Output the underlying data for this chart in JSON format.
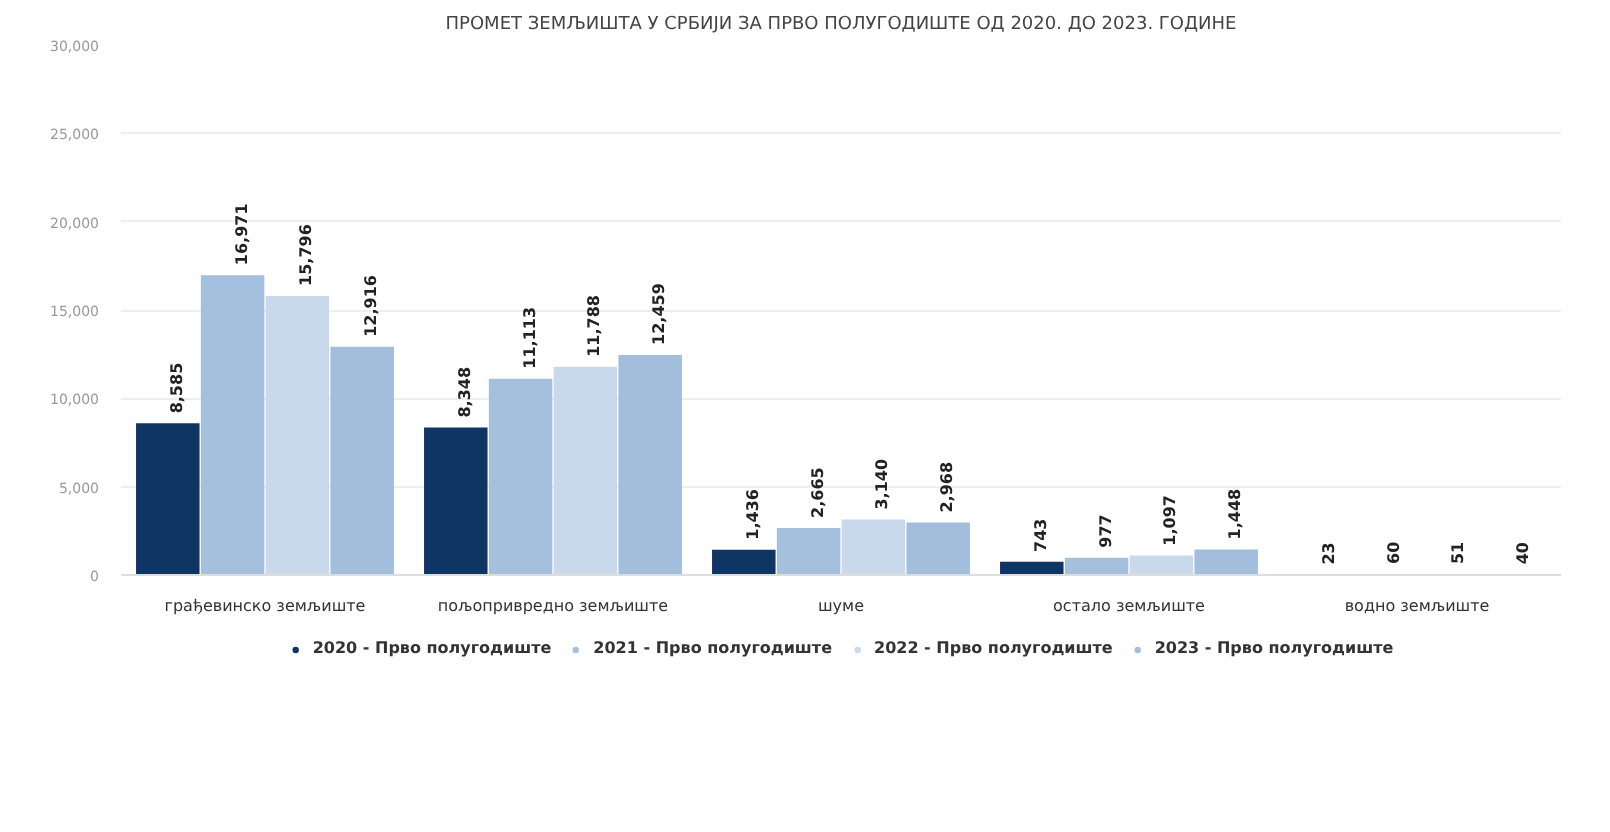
{
  "chart_data": {
    "type": "bar",
    "title": "ПРОМЕТ ЗЕМЉИШТА У СРБИЈИ ЗА ПРВО ПОЛУГОДИШТЕ ОД 2020. ДО 2023. ГОДИНЕ",
    "categories": [
      "грађевинско земљиште",
      "пољопривредно земљиште",
      "шуме",
      "остало земљиште",
      "водно земљиште"
    ],
    "series": [
      {
        "name": "2020 - Прво полугодиште",
        "color": "#0f3564",
        "values": [
          8585,
          8348,
          1436,
          743,
          23
        ],
        "value_labels": [
          "8,585",
          "8,348",
          "1,436",
          "743",
          "23"
        ]
      },
      {
        "name": "2021 - Прво полугодиште",
        "color": "#a4c0de",
        "values": [
          16971,
          11113,
          2665,
          977,
          60
        ],
        "value_labels": [
          "16,971",
          "11,113",
          "2,665",
          "977",
          "60"
        ]
      },
      {
        "name": "2022 - Прво полугодиште",
        "color": "#c9d9ec",
        "values": [
          15796,
          11788,
          3140,
          1097,
          51
        ],
        "value_labels": [
          "15,796",
          "11,788",
          "3,140",
          "1,097",
          "51"
        ]
      },
      {
        "name": "2023 - Прво полугодиште",
        "color": "#a3bedd",
        "values": [
          12916,
          12459,
          2968,
          1448,
          40
        ],
        "value_labels": [
          "12,916",
          "12,459",
          "2,968",
          "1,448",
          "40"
        ]
      }
    ],
    "ylim": [
      0,
      30000
    ],
    "yticks": [
      0,
      {
        "value": 5000,
        "label": "5,000"
      },
      {
        "value": 10000,
        "label": "10,000"
      },
      {
        "value": 15000,
        "label": "15,000"
      },
      {
        "value": 20000,
        "label": "20,000"
      },
      {
        "value": 25000,
        "label": "25,000"
      },
      {
        "value": 30000,
        "label": "30,000"
      }
    ],
    "grid": "y",
    "legend": "bottom"
  }
}
